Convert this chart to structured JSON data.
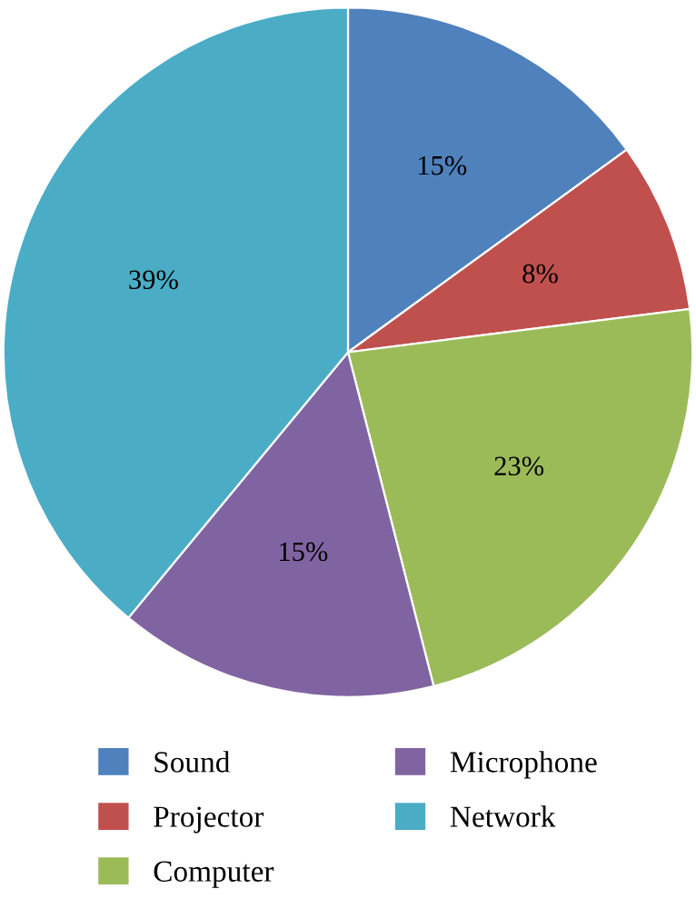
{
  "chart_data": {
    "type": "pie",
    "categories": [
      "Sound",
      "Projector",
      "Computer",
      "Microphone",
      "Network"
    ],
    "values": [
      15,
      8,
      23,
      15,
      39
    ],
    "colors": [
      "#4f81bd",
      "#c0504d",
      "#9bbb59",
      "#8064a2",
      "#4bacc6"
    ],
    "value_labels": [
      "15%",
      "8%",
      "23%",
      "15%",
      "39%"
    ],
    "legend": "bottom"
  }
}
